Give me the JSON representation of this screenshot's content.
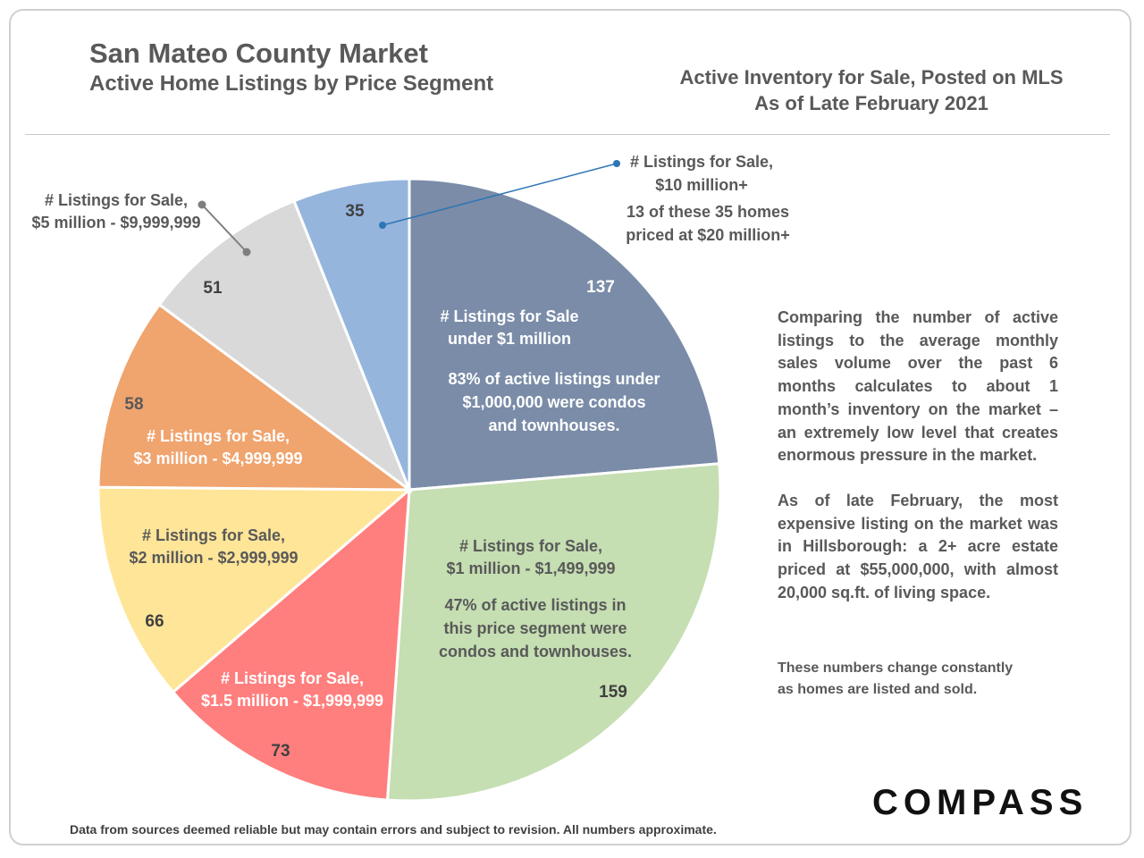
{
  "header": {
    "title": "San Mateo County Market",
    "subtitle": "Active Home Listings by Price Segment",
    "right_line1": "Active Inventory for Sale, Posted on MLS",
    "right_line2": "As of Late February 2021"
  },
  "chart_data": {
    "type": "pie",
    "start": "12 o'clock, clockwise",
    "slices": [
      {
        "value": 137,
        "value_label": "137",
        "color": "#7a8ca8",
        "labels": [
          "# Listings for Sale",
          "under $1 million"
        ],
        "notes": [
          "83% of active listings under",
          "$1,000,000 were condos",
          "and townhouses."
        ]
      },
      {
        "value": 159,
        "value_label": "159",
        "color": "#c5deb2",
        "labels": [
          "# Listings for Sale,",
          "$1 million - $1,499,999"
        ],
        "notes": [
          "47% of active listings in",
          "this price segment were",
          "condos and townhouses."
        ]
      },
      {
        "value": 73,
        "value_label": "73",
        "color": "#ff7f7e",
        "labels": [
          "# Listings for Sale,",
          "$1.5 million - $1,999,999"
        ],
        "notes": []
      },
      {
        "value": 66,
        "value_label": "66",
        "color": "#ffe598",
        "labels": [
          "# Listings for Sale,",
          "$2 million - $2,999,999"
        ],
        "notes": []
      },
      {
        "value": 58,
        "value_label": "58",
        "color": "#f0a46e",
        "labels": [
          "# Listings for Sale,",
          "$3 million - $4,999,999"
        ],
        "notes": []
      },
      {
        "value": 51,
        "value_label": "51",
        "color": "#d9d9d9",
        "labels": [
          "# Listings for Sale,",
          "$5 million - $9,999,999"
        ],
        "notes": []
      },
      {
        "value": 35,
        "value_label": "35",
        "color": "#95b5dd",
        "labels": [
          "# Listings for Sale,",
          "$10 million+"
        ],
        "notes": [
          "13 of these 35 homes",
          "priced at $20 million+"
        ]
      }
    ]
  },
  "commentary": {
    "p1": "Comparing the number of active listings to the average monthly sales volume over the past 6 months calculates to about 1 month’s inventory on the market – an extremely low level that creates enormous pressure in the market.",
    "p2": "As of late February, the most expensive listing on the market was in Hillsborough: a 2+ acre estate priced at $55,000,000, with almost 20,000 sq.ft. of living space."
  },
  "note": {
    "line1": "These numbers change constantly",
    "line2": "as homes are listed and sold."
  },
  "brand": "COMPASS",
  "footnote": "Data from sources deemed reliable but may contain errors and subject to revision. All numbers approximate.",
  "colors": {
    "text": "#595959",
    "connector_blue": "#2e75b6",
    "connector_gray": "#7f7f7f"
  }
}
